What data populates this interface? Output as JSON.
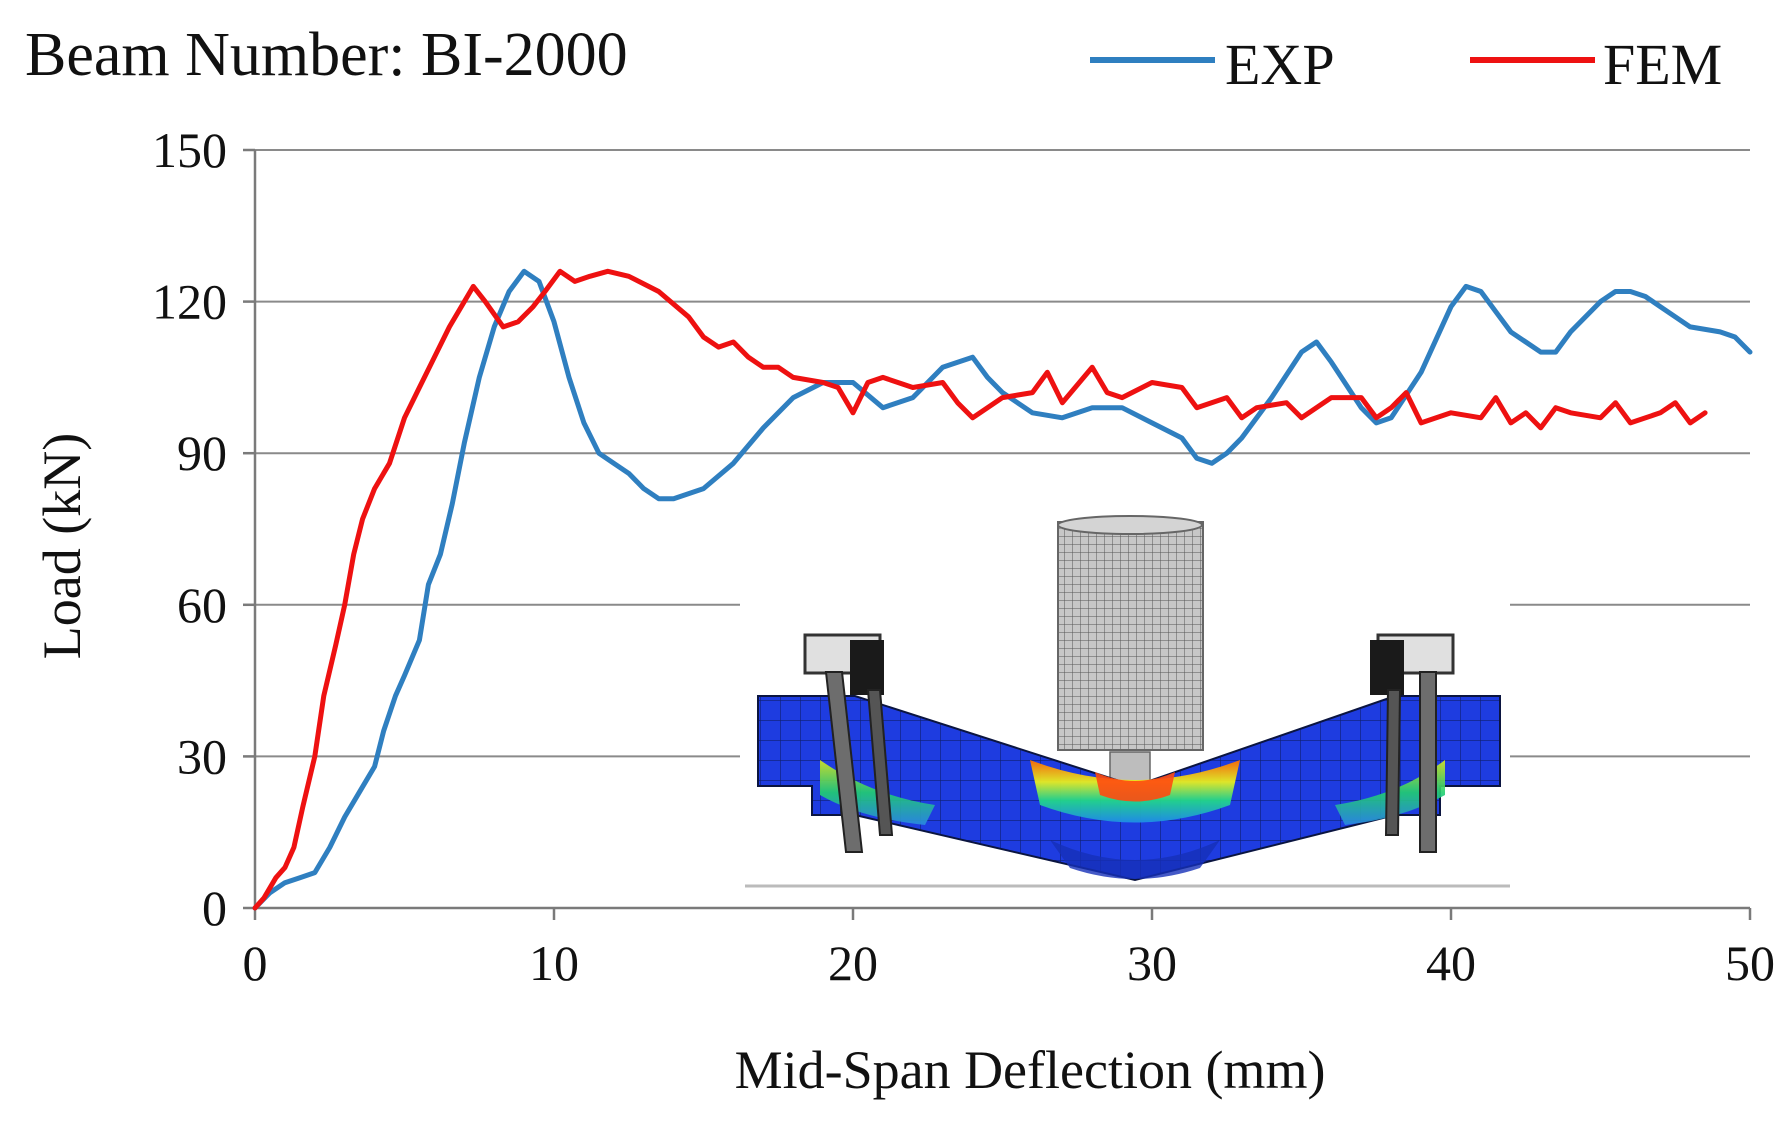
{
  "chart_data": {
    "type": "line",
    "title": "Beam Number: BI-2000",
    "xlabel": "Mid-Span Deflection (mm)",
    "ylabel": "Load (kN)",
    "xlim": [
      0,
      50
    ],
    "ylim": [
      0,
      150
    ],
    "xticks": [
      0,
      10,
      20,
      30,
      40,
      50
    ],
    "yticks": [
      0,
      30,
      60,
      90,
      120,
      150
    ],
    "grid": "horizontal",
    "legend_position": "top-right",
    "inset": "FE model contour image of deformed beam under central loading cylinder",
    "series": [
      {
        "name": "EXP",
        "color": "#2f7fc0",
        "points": [
          [
            0,
            0
          ],
          [
            0.5,
            3
          ],
          [
            1,
            5
          ],
          [
            1.5,
            6
          ],
          [
            2,
            7
          ],
          [
            2.5,
            12
          ],
          [
            3,
            18
          ],
          [
            3.5,
            23
          ],
          [
            4,
            28
          ],
          [
            4.3,
            35
          ],
          [
            4.7,
            42
          ],
          [
            5,
            46
          ],
          [
            5.5,
            53
          ],
          [
            5.8,
            64
          ],
          [
            6.2,
            70
          ],
          [
            6.6,
            80
          ],
          [
            7,
            92
          ],
          [
            7.5,
            105
          ],
          [
            8,
            115
          ],
          [
            8.5,
            122
          ],
          [
            9,
            126
          ],
          [
            9.5,
            124
          ],
          [
            10,
            116
          ],
          [
            10.5,
            105
          ],
          [
            11,
            96
          ],
          [
            11.5,
            90
          ],
          [
            12,
            88
          ],
          [
            12.5,
            86
          ],
          [
            13,
            83
          ],
          [
            13.5,
            81
          ],
          [
            14,
            81
          ],
          [
            15,
            83
          ],
          [
            16,
            88
          ],
          [
            17,
            95
          ],
          [
            18,
            101
          ],
          [
            19,
            104
          ],
          [
            20,
            104
          ],
          [
            21,
            99
          ],
          [
            22,
            101
          ],
          [
            23,
            107
          ],
          [
            24,
            109
          ],
          [
            24.5,
            105
          ],
          [
            25,
            102
          ],
          [
            26,
            98
          ],
          [
            27,
            97
          ],
          [
            28,
            99
          ],
          [
            29,
            99
          ],
          [
            30,
            96
          ],
          [
            31,
            93
          ],
          [
            31.5,
            89
          ],
          [
            32,
            88
          ],
          [
            32.5,
            90
          ],
          [
            33,
            93
          ],
          [
            34,
            101
          ],
          [
            35,
            110
          ],
          [
            35.5,
            112
          ],
          [
            36,
            108
          ],
          [
            37,
            99
          ],
          [
            37.5,
            96
          ],
          [
            38,
            97
          ],
          [
            39,
            106
          ],
          [
            40,
            119
          ],
          [
            40.5,
            123
          ],
          [
            41,
            122
          ],
          [
            41.5,
            118
          ],
          [
            42,
            114
          ],
          [
            42.5,
            112
          ],
          [
            43,
            110
          ],
          [
            43.5,
            110
          ],
          [
            44,
            114
          ],
          [
            45,
            120
          ],
          [
            45.5,
            122
          ],
          [
            46,
            122
          ],
          [
            46.5,
            121
          ],
          [
            47,
            119
          ],
          [
            48,
            115
          ],
          [
            49,
            114
          ],
          [
            49.5,
            113
          ],
          [
            50,
            110
          ]
        ]
      },
      {
        "name": "FEM",
        "color": "#ee1111",
        "points": [
          [
            0,
            0
          ],
          [
            0.3,
            2
          ],
          [
            0.7,
            6
          ],
          [
            1,
            8
          ],
          [
            1.3,
            12
          ],
          [
            1.6,
            20
          ],
          [
            2,
            30
          ],
          [
            2.3,
            42
          ],
          [
            2.7,
            52
          ],
          [
            3,
            60
          ],
          [
            3.3,
            70
          ],
          [
            3.6,
            77
          ],
          [
            4,
            83
          ],
          [
            4.5,
            88
          ],
          [
            5,
            97
          ],
          [
            5.5,
            103
          ],
          [
            6,
            109
          ],
          [
            6.5,
            115
          ],
          [
            7,
            120
          ],
          [
            7.3,
            123
          ],
          [
            7.7,
            120
          ],
          [
            8.3,
            115
          ],
          [
            8.8,
            116
          ],
          [
            9.3,
            119
          ],
          [
            9.7,
            122
          ],
          [
            10.2,
            126
          ],
          [
            10.7,
            124
          ],
          [
            11.2,
            125
          ],
          [
            11.8,
            126
          ],
          [
            12.5,
            125
          ],
          [
            13.5,
            122
          ],
          [
            14.5,
            117
          ],
          [
            15,
            113
          ],
          [
            15.5,
            111
          ],
          [
            16,
            112
          ],
          [
            16.5,
            109
          ],
          [
            17,
            107
          ],
          [
            17.5,
            107
          ],
          [
            18,
            105
          ],
          [
            19,
            104
          ],
          [
            19.5,
            103
          ],
          [
            20,
            98
          ],
          [
            20.5,
            104
          ],
          [
            21,
            105
          ],
          [
            22,
            103
          ],
          [
            23,
            104
          ],
          [
            23.5,
            100
          ],
          [
            24,
            97
          ],
          [
            25,
            101
          ],
          [
            26,
            102
          ],
          [
            26.5,
            106
          ],
          [
            27,
            100
          ],
          [
            28,
            107
          ],
          [
            28.5,
            102
          ],
          [
            29,
            101
          ],
          [
            30,
            104
          ],
          [
            31,
            103
          ],
          [
            31.5,
            99
          ],
          [
            32.5,
            101
          ],
          [
            33,
            97
          ],
          [
            33.5,
            99
          ],
          [
            34.5,
            100
          ],
          [
            35,
            97
          ],
          [
            36,
            101
          ],
          [
            37,
            101
          ],
          [
            37.5,
            97
          ],
          [
            38,
            99
          ],
          [
            38.5,
            102
          ],
          [
            39,
            96
          ],
          [
            40,
            98
          ],
          [
            41,
            97
          ],
          [
            41.5,
            101
          ],
          [
            42,
            96
          ],
          [
            42.5,
            98
          ],
          [
            43,
            95
          ],
          [
            43.5,
            99
          ],
          [
            44,
            98
          ],
          [
            45,
            97
          ],
          [
            45.5,
            100
          ],
          [
            46,
            96
          ],
          [
            47,
            98
          ],
          [
            47.5,
            100
          ],
          [
            48,
            96
          ],
          [
            48.5,
            98
          ]
        ]
      }
    ]
  }
}
